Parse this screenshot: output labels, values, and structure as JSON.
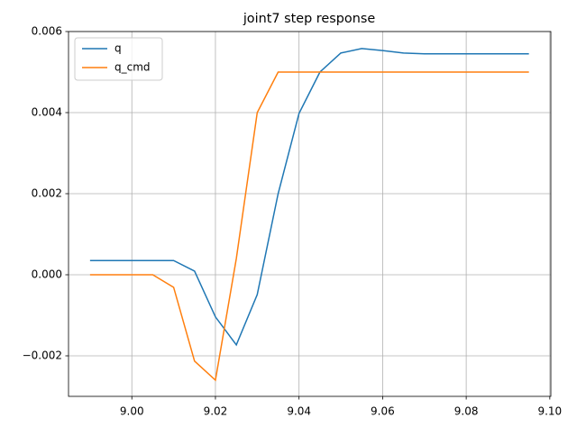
{
  "chart_data": {
    "type": "line",
    "title": "joint7 step response",
    "x": [
      8.99,
      8.995,
      9.0,
      9.005,
      9.01,
      9.015,
      9.02,
      9.025,
      9.03,
      9.035,
      9.04,
      9.045,
      9.05,
      9.055,
      9.06,
      9.065,
      9.07,
      9.075,
      9.08,
      9.085,
      9.09,
      9.095
    ],
    "series": [
      {
        "name": "q",
        "color": "#1f77b4",
        "values": [
          0.00035,
          0.00035,
          0.00035,
          0.00035,
          0.00035,
          9e-05,
          -0.00104,
          -0.00173,
          -0.00049,
          0.002,
          0.00398,
          0.005,
          0.00547,
          0.00558,
          0.00553,
          0.00547,
          0.00545,
          0.00545,
          0.00545,
          0.00545,
          0.00545,
          0.00545
        ]
      },
      {
        "name": "q_cmd",
        "color": "#ff7f0e",
        "values": [
          0,
          0,
          0,
          0,
          -0.00031,
          -0.00213,
          -0.0026,
          0.0004,
          0.004,
          0.005,
          0.005,
          0.005,
          0.005,
          0.005,
          0.005,
          0.005,
          0.005,
          0.005,
          0.005,
          0.005,
          0.005,
          0.005
        ]
      }
    ],
    "xlim": [
      8.98485,
      9.10025
    ],
    "xticks": [
      {
        "value": 9.0,
        "label": "9.00"
      },
      {
        "value": 9.02,
        "label": "9.02"
      },
      {
        "value": 9.04,
        "label": "9.04"
      },
      {
        "value": 9.06,
        "label": "9.06"
      },
      {
        "value": 9.08,
        "label": "9.08"
      },
      {
        "value": 9.1,
        "label": "9.10"
      }
    ],
    "ylim": [
      -0.003,
      0.006
    ],
    "yticks": [
      {
        "value": -0.002,
        "label": "−0.002"
      },
      {
        "value": 0,
        "label": "0.000"
      },
      {
        "value": 0.002,
        "label": "0.002"
      },
      {
        "value": 0.004,
        "label": "0.004"
      },
      {
        "value": 0.006,
        "label": "0.006"
      }
    ],
    "grid": true,
    "legend": "upper-left"
  }
}
